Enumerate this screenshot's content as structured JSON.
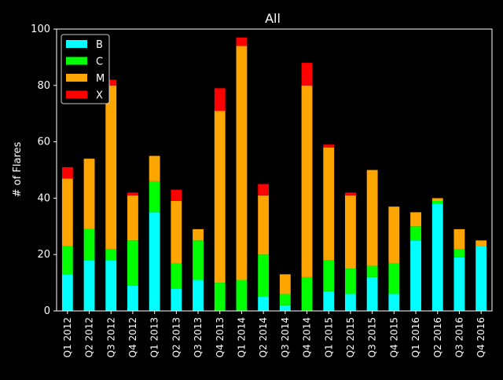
{
  "chart_data": {
    "type": "bar",
    "stacked": true,
    "title": "All",
    "xlabel": "",
    "ylabel": "# of Flares",
    "ylim": [
      0,
      100
    ],
    "yticks": [
      0,
      20,
      40,
      60,
      80,
      100
    ],
    "grid": false,
    "legend_position": "top-left",
    "background": "#000000",
    "categories": [
      "Q1 2012",
      "Q2 2012",
      "Q3 2012",
      "Q4 2012",
      "Q1 2013",
      "Q2 2013",
      "Q3 2013",
      "Q4 2013",
      "Q1 2014",
      "Q2 2014",
      "Q3 2014",
      "Q4 2014",
      "Q1 2015",
      "Q2 2015",
      "Q3 2015",
      "Q4 2015",
      "Q1 2016",
      "Q2 2016",
      "Q3 2016",
      "Q4 2016"
    ],
    "series": [
      {
        "name": "B",
        "color": "#00ffff",
        "values": [
          13,
          18,
          18,
          9,
          35,
          8,
          11,
          0,
          0,
          5,
          2,
          0,
          7,
          6,
          12,
          6,
          25,
          38,
          19,
          23
        ]
      },
      {
        "name": "C",
        "color": "#00ff00",
        "values": [
          10,
          11,
          4,
          16,
          11,
          9,
          14,
          10,
          11,
          15,
          4,
          12,
          11,
          9,
          4,
          11,
          5,
          1,
          3,
          0
        ]
      },
      {
        "name": "M",
        "color": "#ffa500",
        "values": [
          24,
          25,
          58,
          16,
          9,
          22,
          4,
          61,
          83,
          21,
          7,
          68,
          40,
          26,
          34,
          20,
          5,
          1,
          7,
          2
        ]
      },
      {
        "name": "X",
        "color": "#ff0000",
        "values": [
          4,
          0,
          2,
          1,
          0,
          4,
          0,
          8,
          3,
          4,
          0,
          8,
          1,
          1,
          0,
          0,
          0,
          0,
          0,
          0
        ]
      }
    ]
  }
}
